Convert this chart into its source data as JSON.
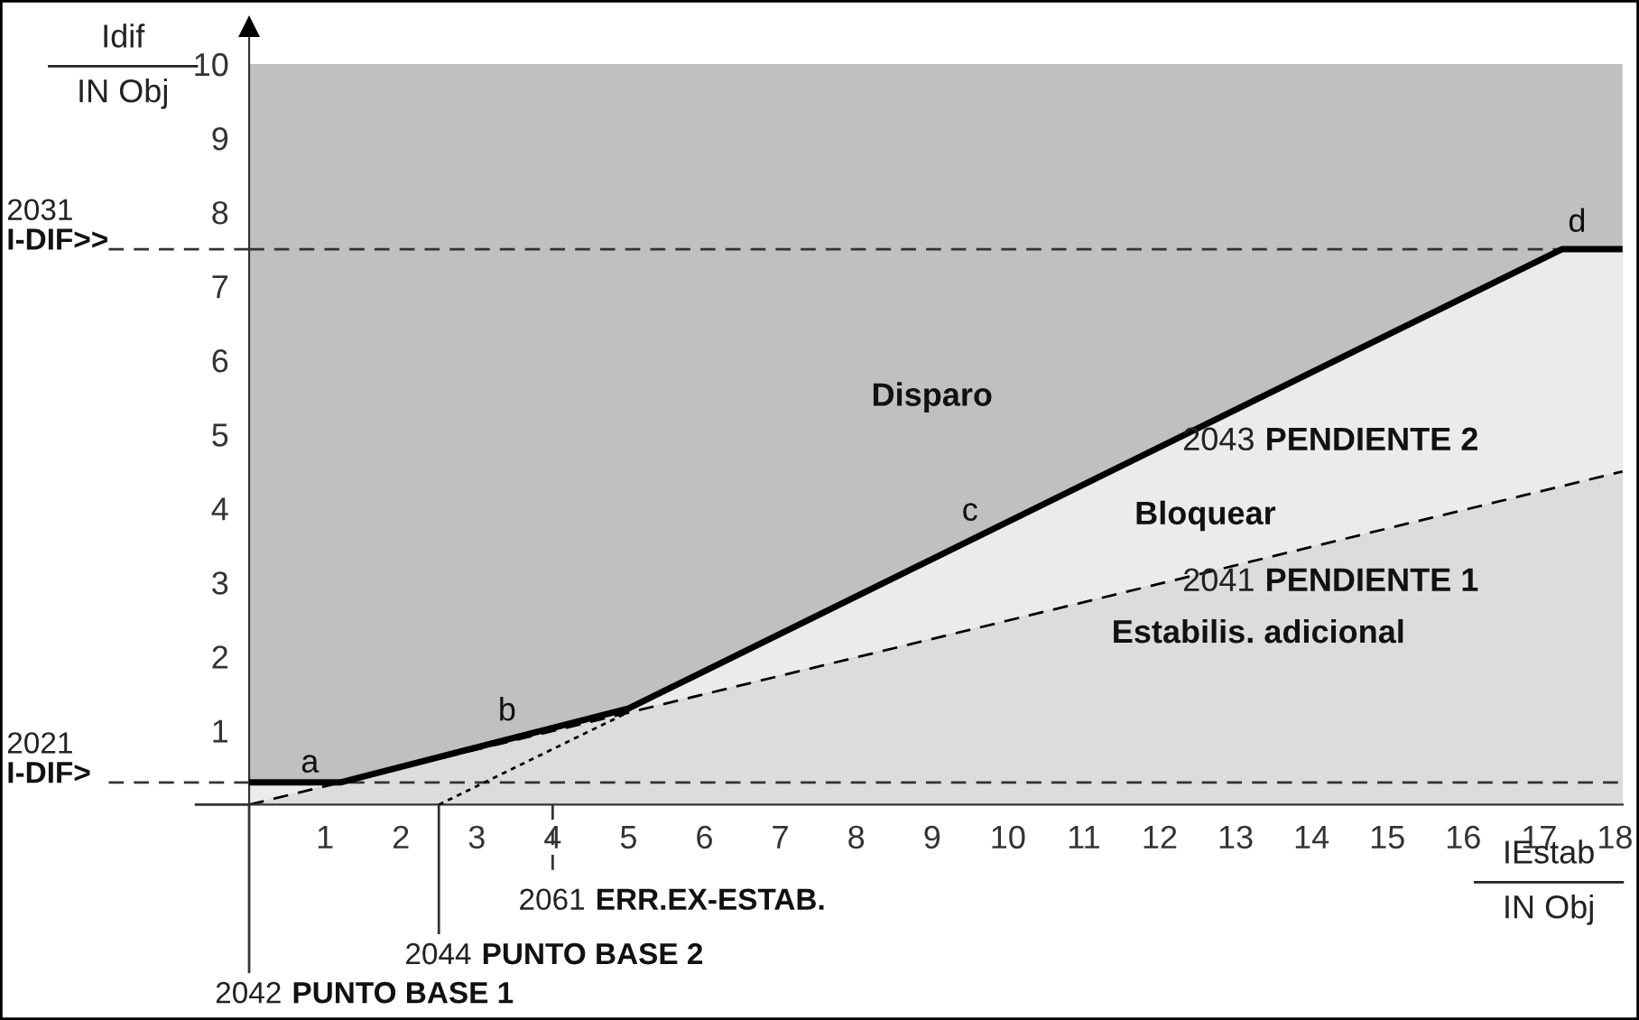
{
  "chart_data": {
    "type": "line",
    "xlabel": "IEstab\nIN Obj",
    "ylabel": "Idif\nIN Obj",
    "xlim": [
      0,
      18.1
    ],
    "ylim": [
      0,
      10.5
    ],
    "xticks": [
      1,
      2,
      3,
      4,
      5,
      6,
      7,
      8,
      9,
      10,
      11,
      12,
      13,
      14,
      15,
      16,
      17,
      18
    ],
    "yticks": [
      1,
      2,
      3,
      4,
      5,
      6,
      7,
      8,
      9,
      10
    ],
    "grid": false,
    "bands": [
      {
        "axis": "y",
        "from": 0,
        "to": 10,
        "color": "#c0c0c0"
      }
    ],
    "series": [
      {
        "type": "area",
        "color": "#dcdcdc",
        "line_style": "dashed",
        "x": [
          0,
          18.1
        ],
        "values": [
          0,
          4.5
        ]
      },
      {
        "color": "#000000",
        "line_style": "solid",
        "x": [
          0,
          1.2,
          5,
          17.3,
          18.1
        ],
        "values": [
          0.3,
          0.3,
          1.3,
          7.5,
          7.5
        ],
        "lower": [
          0,
          0.3,
          1.25,
          4.3,
          4.5
        ],
        "upper": [
          0.3,
          0.3,
          1.3,
          7.5,
          7.5
        ]
      },
      {
        "color": "#000000",
        "line_style": "dotted",
        "x": [
          2.5,
          5
        ],
        "values": [
          0,
          1.25
        ]
      }
    ],
    "ref_lines": [
      {
        "axis": "y",
        "value": 0.3,
        "label": "2021 I-DIF>",
        "line_style": "dashed",
        "color": "#333333"
      },
      {
        "axis": "y",
        "value": 7.5,
        "label": "2031 I-DIF>>",
        "line_style": "dashed",
        "color": "#333333"
      },
      {
        "axis": "x",
        "value": 0,
        "label": "2042 PUNTO BASE 1",
        "line_style": "solid",
        "color": "#333333"
      },
      {
        "axis": "x",
        "value": 2.5,
        "label": "2044 PUNTO BASE 2",
        "line_style": "solid",
        "color": "#333333"
      },
      {
        "axis": "x",
        "value": 4,
        "label": "2061 ERR.EX-ESTAB.",
        "line_style": "dashed",
        "color": "#333333"
      }
    ],
    "annotations": [
      "a",
      "b",
      "c",
      "d",
      "Disparo",
      "Bloquear",
      "Estabilis. adicional",
      "2043 PENDIENTE 2",
      "2041 PENDIENTE 1"
    ]
  }
}
